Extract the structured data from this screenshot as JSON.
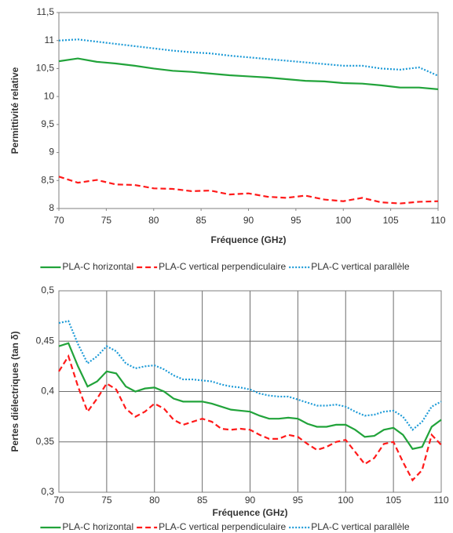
{
  "chart_data": [
    {
      "type": "line",
      "ylabel": "Permittivité relative",
      "xlabel": "Fréquence (GHz)",
      "x": [
        70,
        72,
        74,
        76,
        78,
        80,
        82,
        84,
        86,
        88,
        90,
        92,
        94,
        96,
        98,
        100,
        102,
        104,
        106,
        108,
        110
      ],
      "xlim": [
        70,
        110
      ],
      "xticks": [
        70,
        75,
        80,
        85,
        90,
        95,
        100,
        105,
        110
      ],
      "ylim": [
        8,
        11.5
      ],
      "yticks": [
        {
          "value": 8,
          "label": "8"
        },
        {
          "value": 8.5,
          "label": "8,5"
        },
        {
          "value": 9,
          "label": "9"
        },
        {
          "value": 9.5,
          "label": "9,5"
        },
        {
          "value": 10,
          "label": "10"
        },
        {
          "value": 10.5,
          "label": "10,5"
        },
        {
          "value": 11,
          "label": "11"
        },
        {
          "value": 11.5,
          "label": "11,5"
        }
      ],
      "grid": false,
      "legend": "bottom",
      "series": [
        {
          "name": "PLA-C horizontal",
          "color": "#21a33a",
          "style": "solid",
          "values": [
            10.63,
            10.68,
            10.62,
            10.59,
            10.55,
            10.5,
            10.46,
            10.44,
            10.41,
            10.38,
            10.36,
            10.34,
            10.31,
            10.28,
            10.27,
            10.24,
            10.23,
            10.2,
            10.16,
            10.16,
            10.13
          ]
        },
        {
          "name": "PLA-C vertical perpendiculaire",
          "color": "#ff1a1a",
          "style": "dashed",
          "values": [
            8.57,
            8.46,
            8.51,
            8.43,
            8.42,
            8.36,
            8.35,
            8.31,
            8.32,
            8.25,
            8.27,
            8.21,
            8.19,
            8.23,
            8.16,
            8.13,
            8.19,
            8.11,
            8.09,
            8.12,
            8.13
          ]
        },
        {
          "name": "PLA-C vertical parallèle",
          "color": "#1e9bd7",
          "style": "dotted",
          "values": [
            11.0,
            11.02,
            10.98,
            10.94,
            10.9,
            10.86,
            10.82,
            10.79,
            10.77,
            10.73,
            10.7,
            10.67,
            10.64,
            10.61,
            10.58,
            10.55,
            10.55,
            10.5,
            10.48,
            10.52,
            10.37
          ]
        }
      ]
    },
    {
      "type": "line",
      "ylabel": "Pertes diélectriques (tan δ)",
      "xlabel": "Fréquence (GHz)",
      "x": [
        70,
        71,
        72,
        73,
        74,
        75,
        76,
        77,
        78,
        79,
        80,
        81,
        82,
        83,
        84,
        85,
        86,
        87,
        88,
        89,
        90,
        91,
        92,
        93,
        94,
        95,
        96,
        97,
        98,
        99,
        100,
        101,
        102,
        103,
        104,
        105,
        106,
        107,
        108,
        109,
        110
      ],
      "xlim": [
        70,
        110
      ],
      "xticks": [
        70,
        75,
        80,
        85,
        90,
        95,
        100,
        105,
        110
      ],
      "ylim": [
        0.3,
        0.5
      ],
      "yticks": [
        {
          "value": 0.3,
          "label": "0,3"
        },
        {
          "value": 0.35,
          "label": "0,35"
        },
        {
          "value": 0.4,
          "label": "0,4"
        },
        {
          "value": 0.45,
          "label": "0,45"
        },
        {
          "value": 0.5,
          "label": "0,5"
        }
      ],
      "grid": true,
      "legend": "bottom",
      "series": [
        {
          "name": "PLA-C horizontal",
          "color": "#21a33a",
          "style": "solid",
          "values": [
            0.445,
            0.448,
            0.425,
            0.405,
            0.41,
            0.42,
            0.418,
            0.405,
            0.4,
            0.403,
            0.404,
            0.4,
            0.393,
            0.39,
            0.39,
            0.39,
            0.388,
            0.385,
            0.382,
            0.381,
            0.38,
            0.376,
            0.373,
            0.373,
            0.374,
            0.373,
            0.368,
            0.365,
            0.365,
            0.367,
            0.367,
            0.362,
            0.355,
            0.356,
            0.362,
            0.364,
            0.357,
            0.343,
            0.345,
            0.365,
            0.372
          ]
        },
        {
          "name": "PLA-C vertical perpendiculaire",
          "color": "#ff1a1a",
          "style": "dashed",
          "values": [
            0.42,
            0.435,
            0.405,
            0.38,
            0.393,
            0.408,
            0.402,
            0.383,
            0.375,
            0.38,
            0.388,
            0.383,
            0.372,
            0.367,
            0.37,
            0.373,
            0.37,
            0.363,
            0.362,
            0.363,
            0.362,
            0.357,
            0.353,
            0.353,
            0.357,
            0.355,
            0.348,
            0.342,
            0.345,
            0.35,
            0.352,
            0.34,
            0.328,
            0.334,
            0.348,
            0.35,
            0.33,
            0.312,
            0.322,
            0.357,
            0.347
          ]
        },
        {
          "name": "PLA-C vertical parallèle",
          "color": "#1e9bd7",
          "style": "dotted",
          "values": [
            0.468,
            0.47,
            0.447,
            0.428,
            0.435,
            0.445,
            0.44,
            0.428,
            0.423,
            0.425,
            0.426,
            0.422,
            0.416,
            0.412,
            0.412,
            0.411,
            0.41,
            0.407,
            0.405,
            0.404,
            0.402,
            0.398,
            0.396,
            0.395,
            0.395,
            0.392,
            0.389,
            0.386,
            0.386,
            0.387,
            0.385,
            0.38,
            0.376,
            0.377,
            0.38,
            0.381,
            0.375,
            0.362,
            0.37,
            0.385,
            0.39
          ]
        }
      ]
    }
  ]
}
